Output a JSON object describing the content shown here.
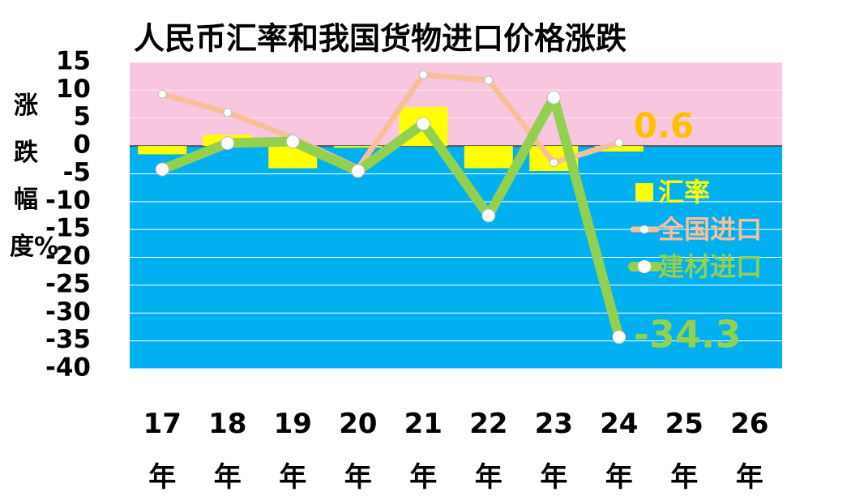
{
  "chart_data": {
    "type": "bar",
    "title": "人民币汇率和我国货物进口价格涨跌",
    "y_label": "涨跌幅度%",
    "categories": [
      "17年",
      "18年",
      "19年",
      "20年",
      "21年",
      "22年",
      "23年",
      "24年",
      "25年",
      "26年"
    ],
    "series": [
      {
        "name": "汇率",
        "type": "bar",
        "color": "#ffff00",
        "values": [
          -1.5,
          2,
          -4,
          -0.3,
          7,
          -4,
          -4.5,
          -1,
          null,
          null
        ]
      },
      {
        "name": "全国进口",
        "type": "line",
        "color": "#f8c09a",
        "values": [
          9.3,
          6,
          1.5,
          -4,
          12.8,
          11.8,
          -3,
          0.6,
          null,
          null
        ]
      },
      {
        "name": "建材进口",
        "type": "line",
        "color": "#92d050",
        "values": [
          -4.2,
          0.5,
          0.8,
          -4.5,
          4,
          -12.5,
          8.7,
          -34.3,
          null,
          null
        ]
      }
    ],
    "annotations": [
      {
        "text": "0.6",
        "color": "#ffc000"
      },
      {
        "text": "-34.3",
        "color": "#92d050"
      }
    ],
    "ylim": [
      -40,
      15
    ],
    "yticks": [
      -40,
      -35,
      -30,
      -25,
      -20,
      -15,
      -10,
      -5,
      0,
      5,
      10,
      15
    ],
    "grid": true,
    "legend": "right",
    "positive_background": "#f9c6df",
    "negative_background": "#00b0f0"
  }
}
